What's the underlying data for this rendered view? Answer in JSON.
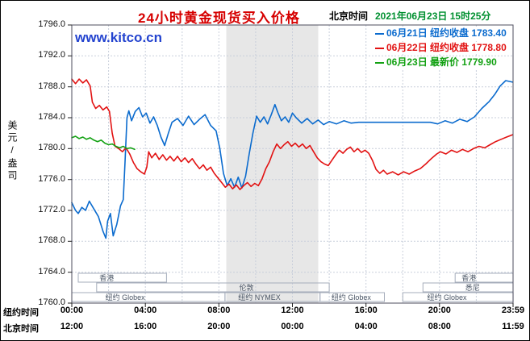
{
  "header": {
    "title": "24小时黄金现货买入价格",
    "clock_label": "北京时间",
    "clock_value": "2021年06月23日 15时25分"
  },
  "watermark": "www.kitco.cn",
  "legend": [
    {
      "date": "06月21日",
      "label": "纽约收盘",
      "value": "1783.40",
      "color": "#0b6bce"
    },
    {
      "date": "06月22日",
      "label": "纽约收盘",
      "value": "1778.80",
      "color": "#e21212"
    },
    {
      "date": "06月23日",
      "label": "最新价",
      "value": "1779.90",
      "color": "#13a113"
    }
  ],
  "chart_data": {
    "type": "line",
    "title": "24小时黄金现货买入价格",
    "ylabel": "美元/盎司",
    "ylim": [
      1760,
      1796
    ],
    "y_ticks": [
      "1796.0",
      "1792.0",
      "1788.0",
      "1784.0",
      "1780.0",
      "1776.0",
      "1772.0",
      "1768.0",
      "1764.0",
      "1760.0"
    ],
    "x_hours": [
      0,
      24
    ],
    "x_tick_hours": [
      0,
      4,
      8,
      12,
      16,
      20,
      24
    ],
    "x_rows": [
      {
        "label": "纽约时间",
        "ticks": [
          "00:00",
          "04:00",
          "08:00",
          "12:00",
          "16:00",
          "20:00",
          "23:59"
        ]
      },
      {
        "label": "北京时间",
        "ticks": [
          "12:00",
          "16:00",
          "20:00",
          "00:00",
          "04:00",
          "08:00",
          "11:59"
        ]
      }
    ],
    "grid": true,
    "legend_position": "top-right",
    "band": {
      "start": 8.4,
      "end": 13.4,
      "color": "#e7e7e7"
    },
    "sessions": [
      {
        "row": 0,
        "start": 0.35,
        "end": 5.15,
        "label": "香港",
        "label_at": 1.9
      },
      {
        "row": 0,
        "start": 20.85,
        "end": 24.0,
        "label": "香港",
        "label_at": 21.6
      },
      {
        "row": 1,
        "start": 1.35,
        "end": 14.0,
        "label": "伦敦",
        "label_at": 9.5
      },
      {
        "row": 1,
        "start": 19.1,
        "end": 24.0,
        "label": "悉尼",
        "label_at": 21.8
      },
      {
        "row": 2,
        "start": 0.0,
        "end": 8.33,
        "label": "纽约 Globex",
        "label_at": 2.9
      },
      {
        "row": 2,
        "start": 8.33,
        "end": 13.5,
        "label": "纽约 NYMEX",
        "label_at": 10.2
      },
      {
        "row": 2,
        "start": 13.5,
        "end": 17.0,
        "label": "纽约 Globex",
        "label_at": 15.2
      },
      {
        "row": 2,
        "start": 18.0,
        "end": 24.0,
        "label": "纽约 Globex",
        "label_at": 20.4
      }
    ],
    "series": [
      {
        "id": "jun21",
        "name": "06月21日 纽约收盘 1783.40",
        "color": "#0b6bce",
        "points": [
          [
            0,
            1773.0
          ],
          [
            0.2,
            1772.0
          ],
          [
            0.35,
            1771.6
          ],
          [
            0.55,
            1772.4
          ],
          [
            0.75,
            1772.0
          ],
          [
            0.95,
            1773.2
          ],
          [
            1.15,
            1772.4
          ],
          [
            1.45,
            1771.2
          ],
          [
            1.7,
            1769.3
          ],
          [
            1.85,
            1768.4
          ],
          [
            1.95,
            1770.6
          ],
          [
            2.1,
            1771.6
          ],
          [
            2.25,
            1768.7
          ],
          [
            2.45,
            1770.2
          ],
          [
            2.65,
            1772.6
          ],
          [
            2.8,
            1773.4
          ],
          [
            2.9,
            1778.5
          ],
          [
            3.0,
            1784.0
          ],
          [
            3.1,
            1784.9
          ],
          [
            3.25,
            1783.6
          ],
          [
            3.45,
            1784.8
          ],
          [
            3.65,
            1785.3
          ],
          [
            3.85,
            1784.1
          ],
          [
            4.05,
            1784.6
          ],
          [
            4.25,
            1783.3
          ],
          [
            4.45,
            1784.1
          ],
          [
            4.65,
            1783.0
          ],
          [
            4.85,
            1781.5
          ],
          [
            5.05,
            1780.4
          ],
          [
            5.25,
            1782.0
          ],
          [
            5.45,
            1783.4
          ],
          [
            5.75,
            1783.9
          ],
          [
            6.05,
            1783.0
          ],
          [
            6.35,
            1784.2
          ],
          [
            6.65,
            1783.1
          ],
          [
            6.95,
            1783.8
          ],
          [
            7.25,
            1784.4
          ],
          [
            7.55,
            1783.0
          ],
          [
            7.85,
            1782.3
          ],
          [
            8.05,
            1780.0
          ],
          [
            8.25,
            1776.8
          ],
          [
            8.45,
            1775.2
          ],
          [
            8.65,
            1776.1
          ],
          [
            8.85,
            1775.0
          ],
          [
            9.05,
            1776.3
          ],
          [
            9.25,
            1774.9
          ],
          [
            9.45,
            1776.4
          ],
          [
            9.65,
            1779.3
          ],
          [
            9.85,
            1782.0
          ],
          [
            10.05,
            1784.2
          ],
          [
            10.25,
            1783.4
          ],
          [
            10.45,
            1784.1
          ],
          [
            10.65,
            1783.2
          ],
          [
            10.85,
            1784.4
          ],
          [
            11.05,
            1785.7
          ],
          [
            11.2,
            1784.7
          ],
          [
            11.4,
            1783.6
          ],
          [
            11.6,
            1784.1
          ],
          [
            11.8,
            1783.4
          ],
          [
            12.0,
            1784.6
          ],
          [
            12.2,
            1784.0
          ],
          [
            12.5,
            1783.3
          ],
          [
            12.8,
            1783.9
          ],
          [
            13.1,
            1783.2
          ],
          [
            13.4,
            1783.7
          ],
          [
            13.7,
            1783.1
          ],
          [
            14.0,
            1783.5
          ],
          [
            14.4,
            1783.2
          ],
          [
            14.8,
            1783.6
          ],
          [
            15.2,
            1783.3
          ],
          [
            15.6,
            1783.4
          ],
          [
            16.5,
            1783.4
          ],
          [
            17.5,
            1783.4
          ],
          [
            18.5,
            1783.4
          ],
          [
            19.5,
            1783.4
          ],
          [
            19.9,
            1783.2
          ],
          [
            20.3,
            1783.6
          ],
          [
            20.7,
            1783.3
          ],
          [
            21.1,
            1783.8
          ],
          [
            21.5,
            1783.5
          ],
          [
            21.9,
            1784.1
          ],
          [
            22.3,
            1785.2
          ],
          [
            22.7,
            1786.1
          ],
          [
            23.0,
            1787.0
          ],
          [
            23.3,
            1788.1
          ],
          [
            23.6,
            1788.8
          ],
          [
            23.98,
            1788.6
          ]
        ]
      },
      {
        "id": "jun22",
        "name": "06月22日 纽约收盘 1778.80",
        "color": "#e21212",
        "points": [
          [
            0,
            1789.0
          ],
          [
            0.2,
            1788.4
          ],
          [
            0.4,
            1789.0
          ],
          [
            0.6,
            1788.5
          ],
          [
            0.8,
            1788.9
          ],
          [
            1.0,
            1788.1
          ],
          [
            1.12,
            1786.0
          ],
          [
            1.3,
            1785.2
          ],
          [
            1.5,
            1785.6
          ],
          [
            1.7,
            1785.0
          ],
          [
            1.9,
            1785.4
          ],
          [
            2.05,
            1784.8
          ],
          [
            2.2,
            1782.0
          ],
          [
            2.35,
            1780.3
          ],
          [
            2.55,
            1780.0
          ],
          [
            2.75,
            1779.6
          ],
          [
            2.95,
            1780.1
          ],
          [
            3.15,
            1779.3
          ],
          [
            3.35,
            1778.2
          ],
          [
            3.55,
            1777.4
          ],
          [
            3.75,
            1777.0
          ],
          [
            3.95,
            1776.7
          ],
          [
            4.08,
            1777.6
          ],
          [
            4.18,
            1779.6
          ],
          [
            4.35,
            1778.8
          ],
          [
            4.55,
            1779.4
          ],
          [
            4.75,
            1778.6
          ],
          [
            4.95,
            1779.2
          ],
          [
            5.15,
            1778.5
          ],
          [
            5.35,
            1779.0
          ],
          [
            5.55,
            1778.4
          ],
          [
            5.75,
            1779.0
          ],
          [
            5.95,
            1778.3
          ],
          [
            6.15,
            1778.8
          ],
          [
            6.35,
            1778.2
          ],
          [
            6.55,
            1778.7
          ],
          [
            6.75,
            1778.0
          ],
          [
            6.95,
            1777.4
          ],
          [
            7.15,
            1777.9
          ],
          [
            7.35,
            1777.2
          ],
          [
            7.55,
            1777.6
          ],
          [
            7.75,
            1776.8
          ],
          [
            7.95,
            1776.2
          ],
          [
            8.15,
            1775.6
          ],
          [
            8.35,
            1775.0
          ],
          [
            8.55,
            1775.4
          ],
          [
            8.75,
            1774.8
          ],
          [
            8.95,
            1775.3
          ],
          [
            9.15,
            1774.7
          ],
          [
            9.35,
            1775.2
          ],
          [
            9.55,
            1775.6
          ],
          [
            9.75,
            1775.1
          ],
          [
            9.95,
            1775.5
          ],
          [
            10.15,
            1775.2
          ],
          [
            10.35,
            1776.1
          ],
          [
            10.55,
            1777.4
          ],
          [
            10.75,
            1778.3
          ],
          [
            10.95,
            1779.6
          ],
          [
            11.15,
            1780.6
          ],
          [
            11.35,
            1780.0
          ],
          [
            11.55,
            1780.5
          ],
          [
            11.75,
            1780.9
          ],
          [
            11.95,
            1780.3
          ],
          [
            12.15,
            1780.7
          ],
          [
            12.35,
            1780.2
          ],
          [
            12.55,
            1780.6
          ],
          [
            12.75,
            1780.0
          ],
          [
            12.95,
            1780.4
          ],
          [
            13.15,
            1779.6
          ],
          [
            13.35,
            1778.8
          ],
          [
            13.55,
            1778.3
          ],
          [
            13.75,
            1778.0
          ],
          [
            13.95,
            1777.8
          ],
          [
            14.15,
            1778.5
          ],
          [
            14.35,
            1779.2
          ],
          [
            14.55,
            1779.8
          ],
          [
            14.75,
            1779.4
          ],
          [
            14.95,
            1779.9
          ],
          [
            15.15,
            1780.2
          ],
          [
            15.35,
            1779.6
          ],
          [
            15.55,
            1780.0
          ],
          [
            15.75,
            1779.5
          ],
          [
            15.95,
            1779.8
          ],
          [
            16.15,
            1779.4
          ],
          [
            16.35,
            1778.5
          ],
          [
            16.55,
            1777.3
          ],
          [
            16.75,
            1776.8
          ],
          [
            16.95,
            1777.2
          ],
          [
            17.15,
            1776.7
          ],
          [
            17.45,
            1777.0
          ],
          [
            17.75,
            1776.6
          ],
          [
            18.05,
            1777.0
          ],
          [
            18.35,
            1776.7
          ],
          [
            18.65,
            1777.1
          ],
          [
            18.95,
            1777.4
          ],
          [
            19.25,
            1778.0
          ],
          [
            19.55,
            1778.7
          ],
          [
            19.85,
            1779.3
          ],
          [
            20.05,
            1779.6
          ],
          [
            20.35,
            1779.3
          ],
          [
            20.65,
            1779.8
          ],
          [
            20.95,
            1779.5
          ],
          [
            21.25,
            1779.9
          ],
          [
            21.55,
            1779.6
          ],
          [
            21.85,
            1780.0
          ],
          [
            22.15,
            1780.3
          ],
          [
            22.45,
            1780.1
          ],
          [
            22.75,
            1780.5
          ],
          [
            23.05,
            1780.9
          ],
          [
            23.35,
            1781.2
          ],
          [
            23.65,
            1781.5
          ],
          [
            23.98,
            1781.8
          ]
        ]
      },
      {
        "id": "jun23",
        "name": "06月23日 最新价 1779.90",
        "color": "#13a113",
        "points": [
          [
            0,
            1781.4
          ],
          [
            0.2,
            1781.6
          ],
          [
            0.4,
            1781.3
          ],
          [
            0.6,
            1781.5
          ],
          [
            0.8,
            1781.2
          ],
          [
            1.0,
            1781.4
          ],
          [
            1.2,
            1781.1
          ],
          [
            1.4,
            1780.9
          ],
          [
            1.6,
            1781.1
          ],
          [
            1.8,
            1780.7
          ],
          [
            2.0,
            1780.5
          ],
          [
            2.2,
            1780.6
          ],
          [
            2.4,
            1780.3
          ],
          [
            2.6,
            1780.1
          ],
          [
            2.8,
            1780.3
          ],
          [
            3.0,
            1780.0
          ],
          [
            3.2,
            1780.1
          ],
          [
            3.42,
            1779.9
          ]
        ]
      }
    ]
  }
}
